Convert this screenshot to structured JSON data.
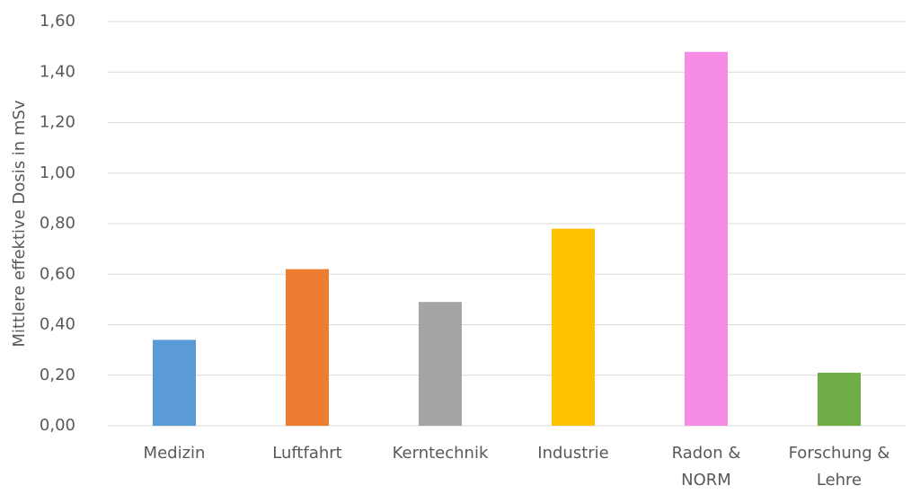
{
  "chart_data": {
    "type": "bar",
    "y_label": "Mittlere effektive Dosis in mSv",
    "categories": [
      "Medizin",
      "Luftfahrt",
      "Kerntechnik",
      "Industrie",
      "Radon &\nNORM",
      "Forschung &\nLehre"
    ],
    "values": [
      0.34,
      0.62,
      0.49,
      0.78,
      1.48,
      0.21
    ],
    "colors": [
      "#5b9bd5",
      "#ed7d31",
      "#a5a5a5",
      "#ffc000",
      "#f68ce4",
      "#70ad47"
    ],
    "ylim": [
      0,
      1.6
    ],
    "yticks": [
      {
        "value": 0,
        "label": "0,00"
      },
      {
        "value": 0.2,
        "label": "0,20"
      },
      {
        "value": 0.4,
        "label": "0,40"
      },
      {
        "value": 0.6,
        "label": "0,60"
      },
      {
        "value": 0.8,
        "label": "0,80"
      },
      {
        "value": 1.0,
        "label": "1,00"
      },
      {
        "value": 1.2,
        "label": "1,20"
      },
      {
        "value": 1.4,
        "label": "1,40"
      },
      {
        "value": 1.6,
        "label": "1,60"
      }
    ],
    "grid": true
  }
}
